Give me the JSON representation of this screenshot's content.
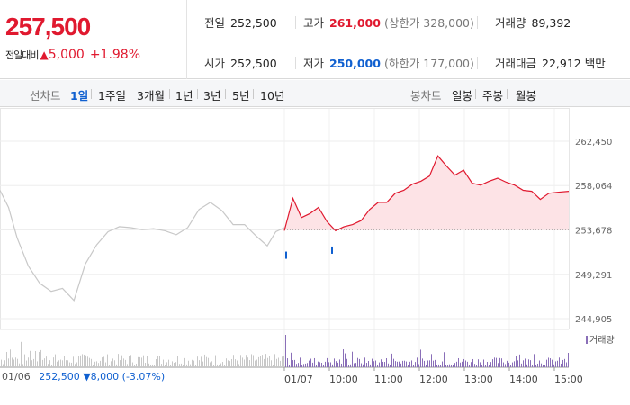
{
  "quote": {
    "price": "257,500",
    "change_label": "전일대비",
    "change_arrow": "▲",
    "change": "5,000",
    "change_pct": "+1.98%"
  },
  "info": {
    "prev_label": "전일",
    "prev": "252,500",
    "open_label": "시가",
    "open": "252,500",
    "high_label": "고가",
    "high": "261,000",
    "upper_limit": "(상한가 328,000)",
    "low_label": "저가",
    "low": "250,000",
    "lower_limit": "(하한가 177,000)",
    "volume_label": "거래량",
    "volume": "89,392",
    "amount_label": "거래대금",
    "amount": "22,912 백만"
  },
  "range_bar": {
    "line_label": "선차트",
    "line_options": [
      "1일",
      "1주일",
      "3개월",
      "1년",
      "3년",
      "5년",
      "10년"
    ],
    "line_selected": "1일",
    "candle_label": "봉차트",
    "candle_options": [
      "일봉",
      "주봉",
      "월봉"
    ]
  },
  "footer": {
    "date": "01/06",
    "close": "252,500",
    "arrow": "▼",
    "change": "8,000",
    "pct": "(-3.07%)"
  },
  "colors": {
    "up": "#e0192f",
    "down": "#1060d0",
    "prev_day_line": "#c8c8c8",
    "area_fill": "#fde3e6",
    "volume_prev": "#c8c8c8",
    "volume_today": "#8a6fb8"
  },
  "chart_data": {
    "type": "line",
    "prev_close": 253678,
    "y_ticks": [
      "262,450",
      "258,064",
      "253,678",
      "249,291",
      "244,905"
    ],
    "ylim": [
      244905,
      262450
    ],
    "x_tick_labels": [
      "01/07",
      "10:00",
      "11:00",
      "12:00",
      "13:00",
      "14:00",
      "15:00"
    ],
    "volume_label": "거래량",
    "series": [
      {
        "segment": "01/06",
        "x": [
          0,
          0.03,
          0.06,
          0.1,
          0.14,
          0.18,
          0.22,
          0.26,
          0.3,
          0.34,
          0.38,
          0.42,
          0.46,
          0.5,
          0.54,
          0.58,
          0.62,
          0.66,
          0.7,
          0.74,
          0.78,
          0.82,
          0.86,
          0.9,
          0.94,
          0.97,
          1.0
        ],
        "values": [
          257600,
          255900,
          252900,
          250100,
          248400,
          247600,
          247900,
          246700,
          250300,
          252200,
          253500,
          254000,
          253900,
          253700,
          253800,
          253600,
          253200,
          253900,
          255700,
          256400,
          255600,
          254200,
          254200,
          253100,
          252100,
          253500,
          253900
        ]
      },
      {
        "segment": "01/07",
        "x": [
          0,
          0.03,
          0.06,
          0.09,
          0.12,
          0.15,
          0.18,
          0.21,
          0.24,
          0.27,
          0.3,
          0.33,
          0.36,
          0.39,
          0.42,
          0.45,
          0.48,
          0.51,
          0.54,
          0.57,
          0.6,
          0.63,
          0.66,
          0.69,
          0.72,
          0.75,
          0.78,
          0.81,
          0.84,
          0.87,
          0.9,
          0.93,
          0.96,
          1.0
        ],
        "values": [
          253600,
          256800,
          254900,
          255300,
          255900,
          254500,
          253600,
          254000,
          254200,
          254600,
          255700,
          256400,
          256400,
          257300,
          257600,
          258200,
          258500,
          259000,
          261000,
          260000,
          259100,
          259600,
          258300,
          258100,
          258500,
          258800,
          258400,
          258100,
          257600,
          257500,
          256700,
          257300,
          257400,
          257500
        ]
      }
    ]
  }
}
